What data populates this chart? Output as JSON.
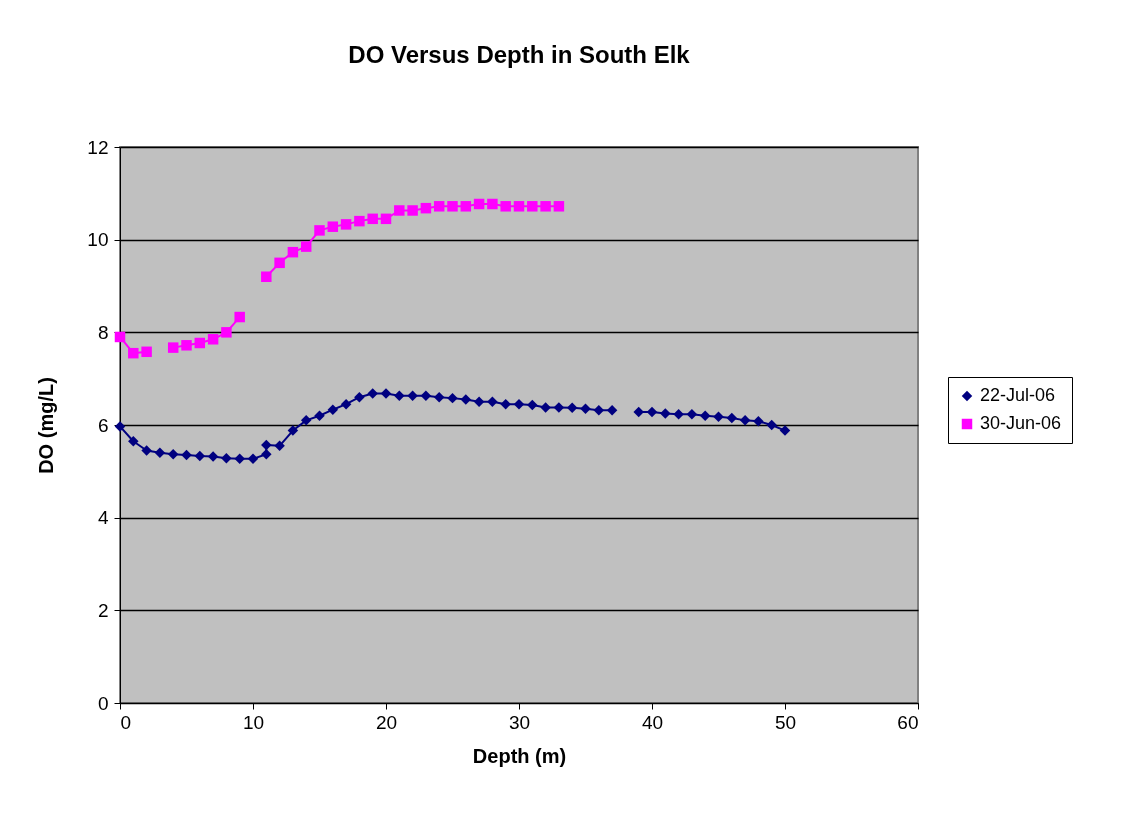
{
  "chart_data": {
    "type": "line",
    "title": "DO Versus Depth in South Elk",
    "xlabel": "Depth (m)",
    "ylabel": "DO (mg/L)",
    "xlim": [
      0,
      60
    ],
    "xticks": [
      0,
      10,
      20,
      30,
      40,
      50,
      60
    ],
    "ylim": [
      0,
      12
    ],
    "yticks": [
      0,
      2,
      4,
      6,
      8,
      10,
      12
    ],
    "grid": "y",
    "legend": "right",
    "line_style": "solid",
    "series": [
      {
        "name": "22-Jul-06",
        "color": "#000080",
        "marker": "diamond",
        "x": [
          0,
          1,
          2,
          3,
          4,
          5,
          6,
          7,
          8,
          9,
          10,
          11,
          11,
          12,
          13,
          14,
          15,
          16,
          17,
          18,
          19,
          20,
          21,
          22,
          23,
          24,
          25,
          26,
          27,
          28,
          29,
          30,
          31,
          32,
          33,
          34,
          35,
          36,
          37,
          38,
          39,
          40,
          41,
          42,
          43,
          44,
          45,
          46,
          47,
          48,
          49,
          50
        ],
        "values": [
          5.97,
          5.65,
          5.45,
          5.4,
          5.37,
          5.35,
          5.33,
          5.32,
          5.28,
          5.27,
          5.27,
          5.37,
          5.57,
          5.55,
          5.88,
          6.1,
          6.2,
          6.33,
          6.45,
          6.6,
          6.68,
          6.68,
          6.63,
          6.63,
          6.63,
          6.6,
          6.58,
          6.55,
          6.5,
          6.5,
          6.45,
          6.45,
          6.43,
          6.38,
          6.38,
          6.37,
          6.35,
          6.32,
          6.32,
          null,
          6.28,
          6.28,
          6.25,
          6.23,
          6.23,
          6.2,
          6.18,
          6.15,
          6.1,
          6.08,
          6.0,
          5.88
        ]
      },
      {
        "name": "30-Jun-06",
        "color": "#ff00ff",
        "marker": "square",
        "x": [
          0,
          1,
          2,
          3,
          4,
          5,
          6,
          7,
          8,
          9,
          10,
          11,
          12,
          13,
          14,
          15,
          16,
          17,
          18,
          19,
          20,
          21,
          22,
          23,
          24,
          25,
          26,
          27,
          28,
          29,
          30,
          31,
          32,
          33
        ],
        "values": [
          7.9,
          7.55,
          7.58,
          null,
          7.67,
          7.72,
          7.77,
          7.85,
          8.0,
          8.33,
          null,
          9.2,
          9.5,
          9.73,
          9.85,
          10.2,
          10.28,
          10.33,
          10.4,
          10.45,
          10.45,
          10.63,
          10.63,
          10.68,
          10.72,
          10.72,
          10.72,
          10.77,
          10.77,
          10.72,
          10.72,
          10.72,
          10.72,
          10.72
        ]
      }
    ]
  }
}
